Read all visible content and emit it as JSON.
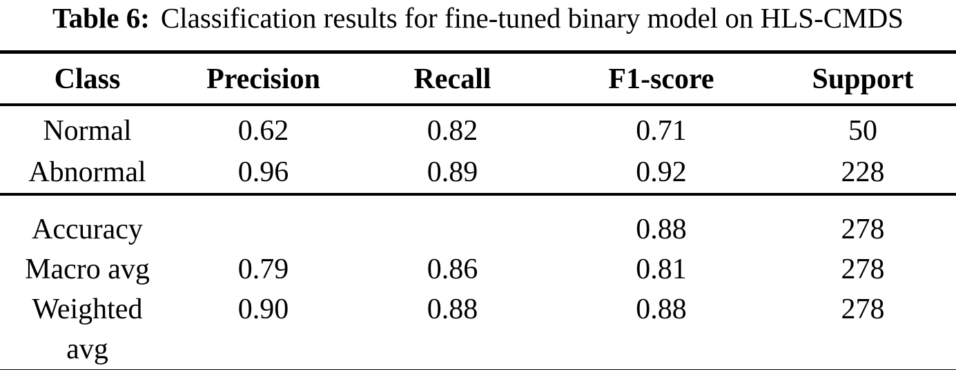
{
  "caption": {
    "label": "Table 6:",
    "text": "Classification results for fine-tuned binary model on HLS-CMDS"
  },
  "colors": {
    "text": "#000000",
    "background": "#ffffff",
    "rules": "#000000"
  },
  "table": {
    "columns": [
      "Class",
      "Precision",
      "Recall",
      "F1-score",
      "Support"
    ],
    "class_rows": [
      {
        "cells": [
          "Normal",
          "0.62",
          "0.82",
          "0.71",
          "50"
        ]
      },
      {
        "cells": [
          "Abnormal",
          "0.96",
          "0.89",
          "0.92",
          "228"
        ]
      }
    ],
    "summary_rows": [
      {
        "cells": [
          "Accuracy",
          "",
          "",
          "0.88",
          "278"
        ]
      },
      {
        "cells": [
          "Macro avg",
          "0.79",
          "0.86",
          "0.81",
          "278"
        ]
      },
      {
        "cells": [
          "Weighted avg",
          "0.90",
          "0.88",
          "0.88",
          "278"
        ]
      }
    ]
  }
}
